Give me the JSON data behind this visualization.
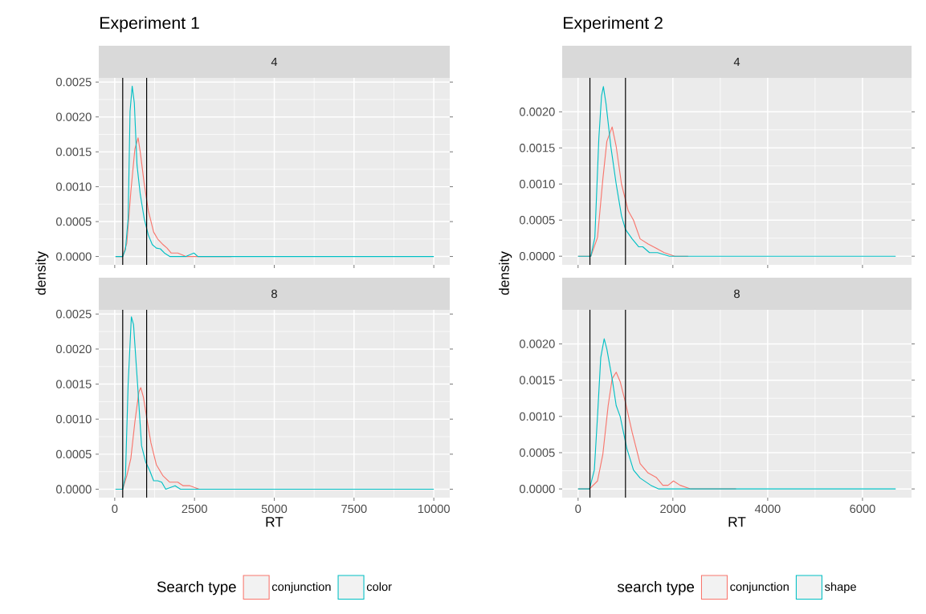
{
  "chart_data": [
    {
      "type": "line",
      "title": "Experiment 1",
      "subtitle": "4",
      "ylabel": "density",
      "tick_labels": "y",
      "grid": true,
      "xlim": [
        -500,
        10500
      ],
      "ylim": [
        -0.00012,
        0.00256
      ],
      "xticks": [
        0,
        2500,
        5000,
        7500,
        10000
      ],
      "yticks": [
        {
          "value": 0,
          "label": "0.0000"
        },
        {
          "value": 0.0005,
          "label": "0.0005"
        },
        {
          "value": 0.001,
          "label": "0.0010"
        },
        {
          "value": 0.0015,
          "label": "0.0015"
        },
        {
          "value": 0.002,
          "label": "0.0020"
        },
        {
          "value": 0.0025,
          "label": "0.0025"
        }
      ],
      "ref_lines": [
        {
          "axis": "x",
          "value": 250,
          "color": "#000000"
        },
        {
          "axis": "x",
          "value": 1000,
          "color": "#000000"
        }
      ],
      "series": [
        {
          "color": "#f8766d",
          "x": [
            25,
            250,
            378,
            505,
            631,
            732,
            799,
            925,
            1051,
            1219,
            1346,
            1514,
            1640,
            1766,
            1976,
            2229,
            2817,
            3658
          ],
          "values": [
            0,
            0,
            0.00019,
            0.00093,
            0.00154,
            0.0017,
            0.0015,
            0.00104,
            0.00066,
            0.00035,
            0.00025,
            0.00017,
            0.00012,
            5e-05,
            5e-05,
            0,
            0,
            0
          ]
        },
        {
          "color": "#00bfc4",
          "x": [
            25,
            250,
            336,
            420,
            480,
            547,
            614,
            698,
            800,
            925,
            1051,
            1177,
            1304,
            1430,
            1556,
            1724,
            2229,
            2481,
            2607,
            4000,
            6000,
            8800,
            10000
          ],
          "values": [
            0,
            0,
            0.0001,
            0.00054,
            0.00208,
            0.00244,
            0.0022,
            0.00131,
            0.00089,
            0.00054,
            0.00031,
            0.00017,
            0.00012,
            0.00011,
            5e-05,
            0,
            0,
            5e-05,
            0,
            0,
            0,
            0,
            0
          ]
        }
      ]
    },
    {
      "type": "line",
      "subtitle": "8",
      "xlabel": "RT",
      "legend": "bottom",
      "legend_title": "Search type",
      "grid": true,
      "xlim": [
        -500,
        10500
      ],
      "ylim": [
        -0.00012,
        0.00256
      ],
      "xticks": [
        0,
        2500,
        5000,
        7500,
        10000
      ],
      "yticks": [
        {
          "value": 0,
          "label": "0.0000"
        },
        {
          "value": 0.0005,
          "label": "0.0005"
        },
        {
          "value": 0.001,
          "label": "0.0010"
        },
        {
          "value": 0.0015,
          "label": "0.0015"
        },
        {
          "value": 0.002,
          "label": "0.0020"
        },
        {
          "value": 0.0025,
          "label": "0.0025"
        }
      ],
      "ref_lines": [
        {
          "axis": "x",
          "value": 250,
          "color": "#000000"
        },
        {
          "axis": "x",
          "value": 1000,
          "color": "#000000"
        }
      ],
      "series": [
        {
          "name": "conjunction",
          "color": "#f8766d",
          "x": [
            25,
            250,
            378,
            505,
            631,
            757,
            816,
            900,
            1009,
            1135,
            1304,
            1514,
            1724,
            1976,
            2145,
            2355,
            2649,
            3238,
            5000
          ],
          "values": [
            0,
            0,
            0.00019,
            0.00044,
            0.00096,
            0.00139,
            0.00145,
            0.00131,
            0.001,
            0.00066,
            0.00035,
            0.00019,
            0.0001,
            0.0001,
            5e-05,
            5e-05,
            0,
            0,
            0
          ]
        },
        {
          "name": "color",
          "color": "#00bfc4",
          "x": [
            25,
            250,
            336,
            420,
            521,
            589,
            715,
            841,
            967,
            1093,
            1219,
            1346,
            1472,
            1598,
            1892,
            2060,
            2649,
            2986,
            5000,
            7000,
            10000
          ],
          "values": [
            0,
            0,
            0.00019,
            0.0015,
            0.00246,
            0.00235,
            0.0015,
            0.00062,
            0.00039,
            0.00027,
            0.00012,
            0.00012,
            0.0001,
            0,
            5e-05,
            0,
            0,
            0,
            0,
            0,
            0
          ]
        }
      ]
    },
    {
      "type": "line",
      "title": "Experiment 2",
      "subtitle": "4",
      "ylabel": "density",
      "tick_labels": "y",
      "grid": true,
      "xlim": [
        -335,
        7035
      ],
      "ylim": [
        -0.00012,
        0.00247
      ],
      "xticks": [
        0,
        2000,
        4000,
        6000
      ],
      "yticks": [
        {
          "value": 0,
          "label": "0.0000"
        },
        {
          "value": 0.0005,
          "label": "0.0005"
        },
        {
          "value": 0.001,
          "label": "0.0010"
        },
        {
          "value": 0.0015,
          "label": "0.0015"
        },
        {
          "value": 0.002,
          "label": "0.0020"
        }
      ],
      "ref_lines": [
        {
          "axis": "x",
          "value": 250,
          "color": "#000000"
        },
        {
          "axis": "x",
          "value": 1000,
          "color": "#000000"
        }
      ],
      "series": [
        {
          "color": "#f8766d",
          "x": [
            0,
            270,
            410,
            523,
            607,
            719,
            804,
            916,
            1057,
            1169,
            1309,
            1478,
            1647,
            1816,
            2040,
            2321
          ],
          "values": [
            0,
            0,
            0.00026,
            0.00107,
            0.00159,
            0.00179,
            0.00152,
            0.001,
            0.00063,
            0.0005,
            0.00024,
            0.00017,
            0.00011,
            5e-05,
            0,
            0
          ]
        },
        {
          "color": "#00bfc4",
          "x": [
            0,
            129,
            270,
            354,
            438,
            495,
            534,
            590,
            691,
            804,
            916,
            1000,
            1141,
            1281,
            1366,
            1506,
            1675,
            1928,
            2096,
            2321,
            4300,
            6700
          ],
          "values": [
            0,
            0,
            0,
            0.00026,
            0.00163,
            0.00222,
            0.00235,
            0.00211,
            0.00152,
            0.001,
            0.00056,
            0.00037,
            0.00024,
            0.00013,
            0.00013,
            5e-05,
            5e-05,
            0,
            0,
            0,
            0,
            0
          ]
        }
      ]
    },
    {
      "type": "line",
      "subtitle": "8",
      "xlabel": "RT",
      "legend": "bottom",
      "legend_title": "search type",
      "grid": true,
      "xlim": [
        -335,
        7035
      ],
      "ylim": [
        -0.00012,
        0.00247
      ],
      "xticks": [
        0,
        2000,
        4000,
        6000
      ],
      "yticks": [
        {
          "value": 0,
          "label": "0.0000"
        },
        {
          "value": 0.0005,
          "label": "0.0005"
        },
        {
          "value": 0.001,
          "label": "0.0010"
        },
        {
          "value": 0.0015,
          "label": "0.0015"
        },
        {
          "value": 0.002,
          "label": "0.0020"
        }
      ],
      "ref_lines": [
        {
          "axis": "x",
          "value": 250,
          "color": "#000000"
        },
        {
          "axis": "x",
          "value": 1000,
          "color": "#000000"
        }
      ],
      "series": [
        {
          "name": "conjunction",
          "color": "#f8766d",
          "x": [
            0,
            242,
            410,
            523,
            635,
            719,
            804,
            888,
            1000,
            1141,
            1309,
            1478,
            1647,
            1788,
            1900,
            2012,
            2152,
            2377,
            3333
          ],
          "values": [
            0,
            0,
            0.00011,
            0.00048,
            0.00115,
            0.00152,
            0.00161,
            0.00148,
            0.00119,
            0.00078,
            0.00035,
            0.00022,
            0.00016,
            5e-05,
            5e-05,
            0.00011,
            5e-05,
            0,
            0
          ]
        },
        {
          "name": "shape",
          "color": "#00bfc4",
          "x": [
            0,
            242,
            343,
            410,
            478,
            551,
            607,
            719,
            804,
            888,
            1028,
            1169,
            1309,
            1534,
            1703,
            1928,
            2265,
            2602,
            3052,
            3614,
            6700
          ],
          "values": [
            0,
            0,
            0.00026,
            0.001,
            0.00181,
            0.00207,
            0.00193,
            0.00152,
            0.00115,
            0.001,
            0.00056,
            0.00026,
            0.00015,
            5e-05,
            0,
            0,
            0,
            0,
            0,
            0,
            0
          ]
        }
      ]
    }
  ]
}
